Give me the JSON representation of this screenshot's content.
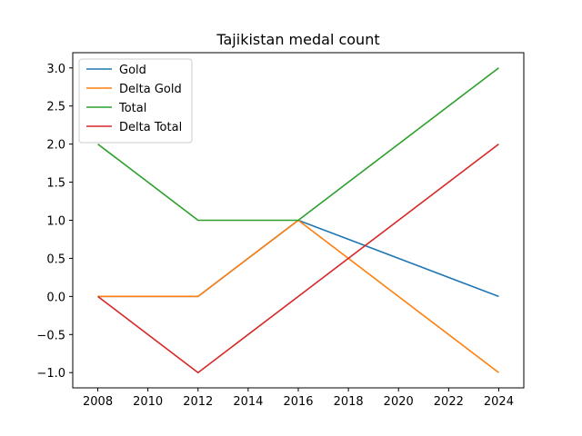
{
  "chart_data": {
    "type": "line",
    "title": "Tajikistan medal count",
    "xlabel": "",
    "ylabel": "",
    "x": [
      2008,
      2012,
      2016,
      2024
    ],
    "xlim": [
      2007,
      2025
    ],
    "ylim": [
      -1.2,
      3.2
    ],
    "xticks": [
      2008,
      2010,
      2012,
      2014,
      2016,
      2018,
      2020,
      2022,
      2024
    ],
    "yticks": [
      -1.0,
      -0.5,
      0.0,
      0.5,
      1.0,
      1.5,
      2.0,
      2.5,
      3.0
    ],
    "ytick_labels": [
      "−1.0",
      "−0.5",
      "0.0",
      "0.5",
      "1.0",
      "1.5",
      "2.0",
      "2.5",
      "3.0"
    ],
    "grid": false,
    "legend_position": "top-left",
    "series": [
      {
        "name": "Gold",
        "color": "#1f77b4",
        "values": [
          0,
          0,
          1,
          0
        ]
      },
      {
        "name": "Delta Gold",
        "color": "#ff7f0e",
        "values": [
          0,
          0,
          1,
          -1
        ]
      },
      {
        "name": "Total",
        "color": "#2ca02c",
        "values": [
          2,
          1,
          1,
          3
        ]
      },
      {
        "name": "Delta Total",
        "color": "#d62728",
        "values": [
          0,
          -1,
          0,
          2
        ]
      }
    ]
  }
}
